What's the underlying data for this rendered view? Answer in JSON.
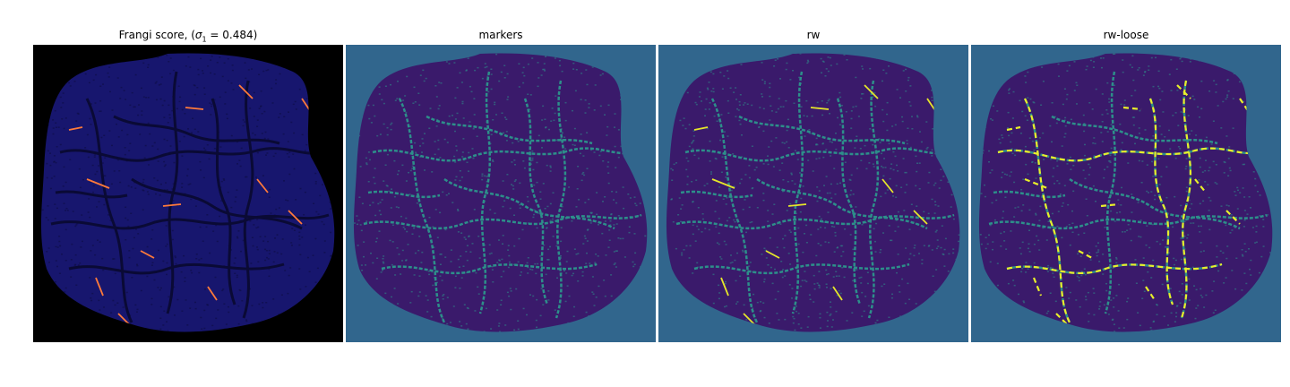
{
  "panels": [
    {
      "id": "frangi",
      "title_prefix": "Frangi score, (",
      "title_sigma": "σ",
      "title_sub": "1",
      "title_suffix": " = 0.484)",
      "background": "#000000",
      "fill": "#17166e",
      "vessel_color": "#0a0a35",
      "highlight_color": "#ff7a3a"
    },
    {
      "id": "markers",
      "title": "markers",
      "background": "#31668d",
      "fill": "#3a1a6b",
      "vessel_color": "#2d8f8a"
    },
    {
      "id": "rw",
      "title": "rw",
      "background": "#31668d",
      "fill": "#3a1a6b",
      "vessel_color": "#2d8f8a",
      "highlight_color": "#e6e62a"
    },
    {
      "id": "rw-loose",
      "title": "rw-loose",
      "background": "#31668d",
      "fill": "#3a1a6b",
      "vessel_color": "#2d8f8a",
      "highlight_color": "#e8ef2a"
    }
  ]
}
